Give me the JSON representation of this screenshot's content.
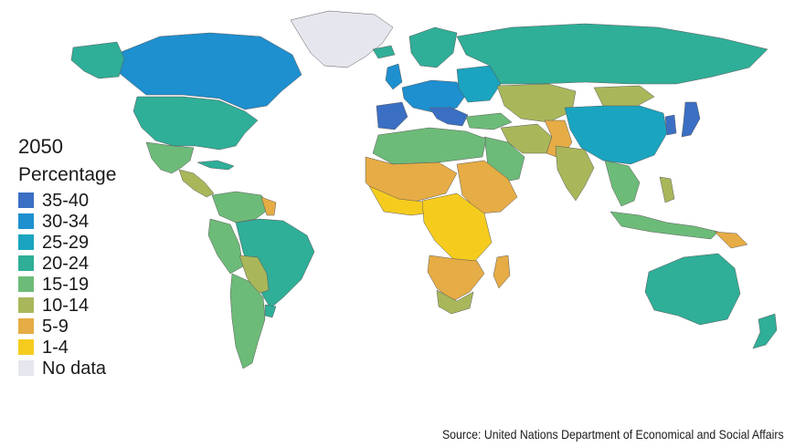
{
  "legend": {
    "year": "2050",
    "title": "Percentage",
    "items": [
      {
        "label": "35-40",
        "color": "#3a6fc4"
      },
      {
        "label": "30-34",
        "color": "#1e8fcf"
      },
      {
        "label": "25-29",
        "color": "#1aa4c0"
      },
      {
        "label": "20-24",
        "color": "#2fae98"
      },
      {
        "label": "15-19",
        "color": "#6dbb78"
      },
      {
        "label": "10-14",
        "color": "#a9b75a"
      },
      {
        "label": "5-9",
        "color": "#e6ac45"
      },
      {
        "label": "1-4",
        "color": "#f5cc1e"
      },
      {
        "label": "No data",
        "color": "#e6e6ee"
      }
    ]
  },
  "source": "Source: United Nations Department of Economical and Social Affairs"
}
